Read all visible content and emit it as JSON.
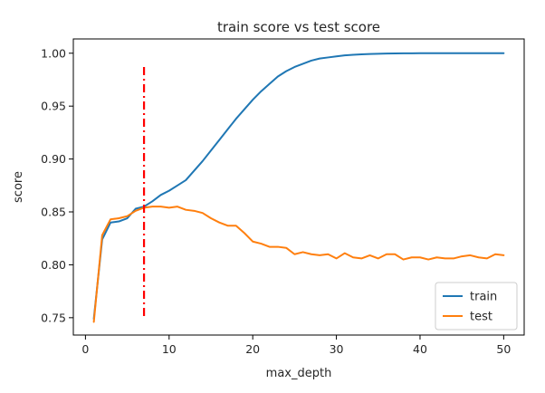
{
  "chart_data": {
    "type": "line",
    "title": "train score vs test score",
    "xlabel": "max_depth",
    "ylabel": "score",
    "xlim": [
      -1.45,
      52.45
    ],
    "ylim": [
      0.7336,
      1.0135
    ],
    "x_ticks": [
      0,
      10,
      20,
      30,
      40,
      50
    ],
    "y_ticks": [
      0.75,
      0.8,
      0.85,
      0.9,
      0.95,
      1.0
    ],
    "x_tick_labels": [
      "0",
      "10",
      "20",
      "30",
      "40",
      "50"
    ],
    "y_tick_labels": [
      "0.75",
      "0.80",
      "0.85",
      "0.90",
      "0.95",
      "1.00"
    ],
    "grid": false,
    "legend_position": "lower right",
    "x": [
      1,
      2,
      3,
      4,
      5,
      6,
      7,
      8,
      9,
      10,
      11,
      12,
      13,
      14,
      15,
      16,
      17,
      18,
      19,
      20,
      21,
      22,
      23,
      24,
      25,
      26,
      27,
      28,
      29,
      30,
      31,
      32,
      33,
      34,
      35,
      36,
      37,
      38,
      39,
      40,
      41,
      42,
      43,
      44,
      45,
      46,
      47,
      48,
      49,
      50
    ],
    "series": [
      {
        "name": "train",
        "color": "#1f77b4",
        "values": [
          0.749,
          0.824,
          0.84,
          0.841,
          0.844,
          0.853,
          0.855,
          0.86,
          0.866,
          0.87,
          0.875,
          0.88,
          0.889,
          0.898,
          0.908,
          0.918,
          0.928,
          0.938,
          0.947,
          0.956,
          0.964,
          0.971,
          0.978,
          0.983,
          0.987,
          0.99,
          0.993,
          0.995,
          0.996,
          0.997,
          0.998,
          0.9985,
          0.999,
          0.9993,
          0.9995,
          0.9997,
          0.9998,
          0.9999,
          0.9999,
          1.0,
          1.0,
          1.0,
          1.0,
          1.0,
          1.0,
          1.0,
          1.0,
          1.0,
          1.0,
          1.0
        ]
      },
      {
        "name": "test",
        "color": "#ff7f0e",
        "values": [
          0.746,
          0.828,
          0.843,
          0.844,
          0.846,
          0.851,
          0.854,
          0.855,
          0.855,
          0.854,
          0.855,
          0.852,
          0.851,
          0.849,
          0.844,
          0.84,
          0.837,
          0.837,
          0.83,
          0.822,
          0.82,
          0.817,
          0.817,
          0.816,
          0.81,
          0.812,
          0.81,
          0.809,
          0.81,
          0.806,
          0.811,
          0.807,
          0.806,
          0.809,
          0.806,
          0.81,
          0.81,
          0.805,
          0.807,
          0.807,
          0.805,
          0.807,
          0.806,
          0.806,
          0.808,
          0.809,
          0.807,
          0.806,
          0.81,
          0.809
        ]
      }
    ],
    "vline": {
      "x": 7,
      "ymin": 0.751,
      "ymax": 0.987,
      "color": "#ff0000",
      "style": "dash-dot"
    }
  }
}
